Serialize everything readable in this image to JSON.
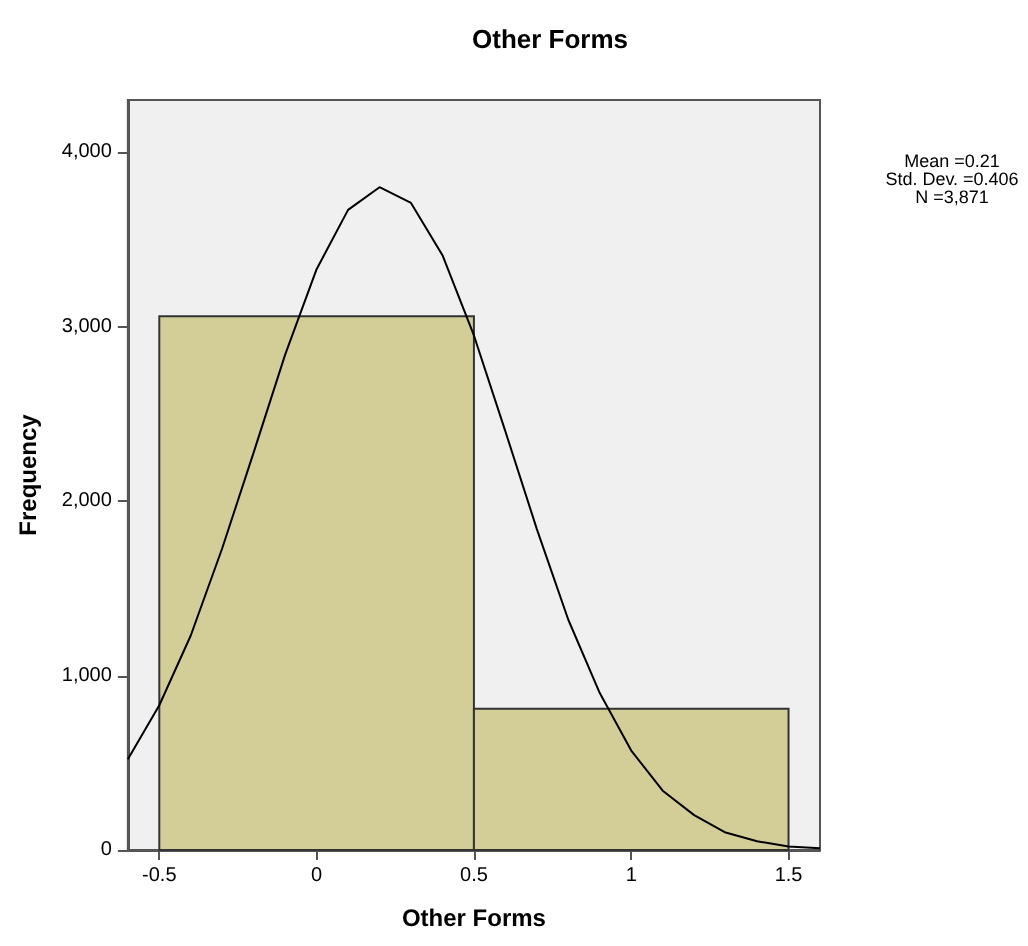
{
  "chart_data": {
    "type": "histogram",
    "title": "Other Forms",
    "xlabel": "Other Forms",
    "ylabel": "Frequency",
    "bins": [
      -0.5,
      0.5,
      1.5
    ],
    "values": [
      3060,
      810
    ],
    "color": "#d3ce97",
    "series": [
      {
        "type": "line",
        "x": [
          -0.6,
          -0.5,
          -0.4,
          -0.3,
          -0.2,
          -0.1,
          0,
          0.1,
          0.2,
          0.3,
          0.4,
          0.5,
          0.6,
          0.7,
          0.8,
          0.9,
          1.0,
          1.1,
          1.2,
          1.3,
          1.4,
          1.5,
          1.6
        ],
        "values": [
          520,
          830,
          1230,
          1730,
          2280,
          2840,
          3330,
          3670,
          3800,
          3710,
          3410,
          2950,
          2400,
          1840,
          1320,
          900,
          570,
          340,
          200,
          100,
          50,
          20,
          10
        ],
        "color": "#000000"
      }
    ],
    "xlim": [
      -0.6,
      1.6
    ],
    "xticks": [
      -0.5,
      0,
      0.5,
      1,
      1.5
    ],
    "ylim": [
      0,
      4300
    ],
    "yticks": [
      0,
      {
        "value": 1000,
        "label": "1,000"
      },
      {
        "value": 2000,
        "label": "2,000"
      },
      {
        "value": 3000,
        "label": "3,000"
      },
      {
        "value": 4000,
        "label": "4,000"
      }
    ],
    "grid": false,
    "marker": "none",
    "annotations": [
      "Mean =0.21",
      "Std. Dev. =0.406",
      "N =3,871"
    ]
  }
}
